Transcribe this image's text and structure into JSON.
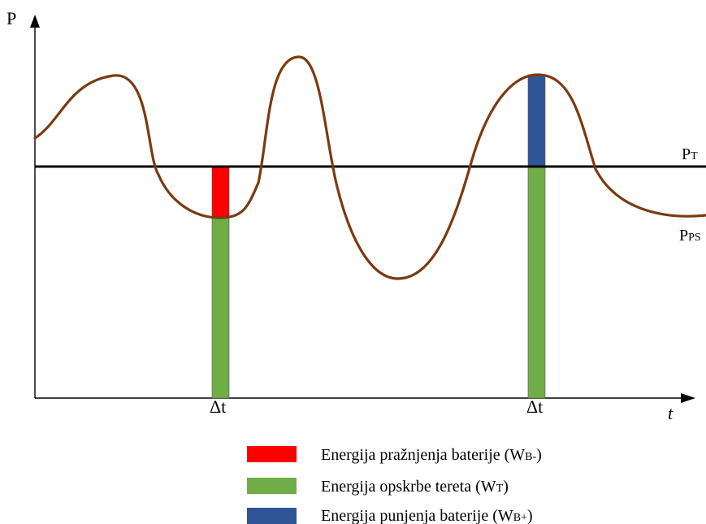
{
  "axes": {
    "y_label": "P",
    "x_label": "t"
  },
  "lines": {
    "pt": {
      "main": "P",
      "sub": "T",
      "color": "#000000"
    },
    "pps": {
      "main": "P",
      "sub": "PS",
      "color": "#7b3a10"
    }
  },
  "markers": [
    {
      "label": "Δt"
    },
    {
      "label": "Δt"
    }
  ],
  "legend": [
    {
      "text": "Energija pražnjenja baterije (W",
      "sub": "B-",
      "close": ")",
      "color": "#ff0000"
    },
    {
      "text": "Energija opskrbe tereta (W",
      "sub": "T",
      "close": ")",
      "color": "#70ad47"
    },
    {
      "text": "Energija punjenja baterije (W",
      "sub": "B+",
      "close": ")",
      "color": "#2f5597"
    }
  ],
  "colors": {
    "discharge": "#ff0000",
    "supply": "#70ad47",
    "charge": "#2f5597",
    "axis": "#000000"
  }
}
